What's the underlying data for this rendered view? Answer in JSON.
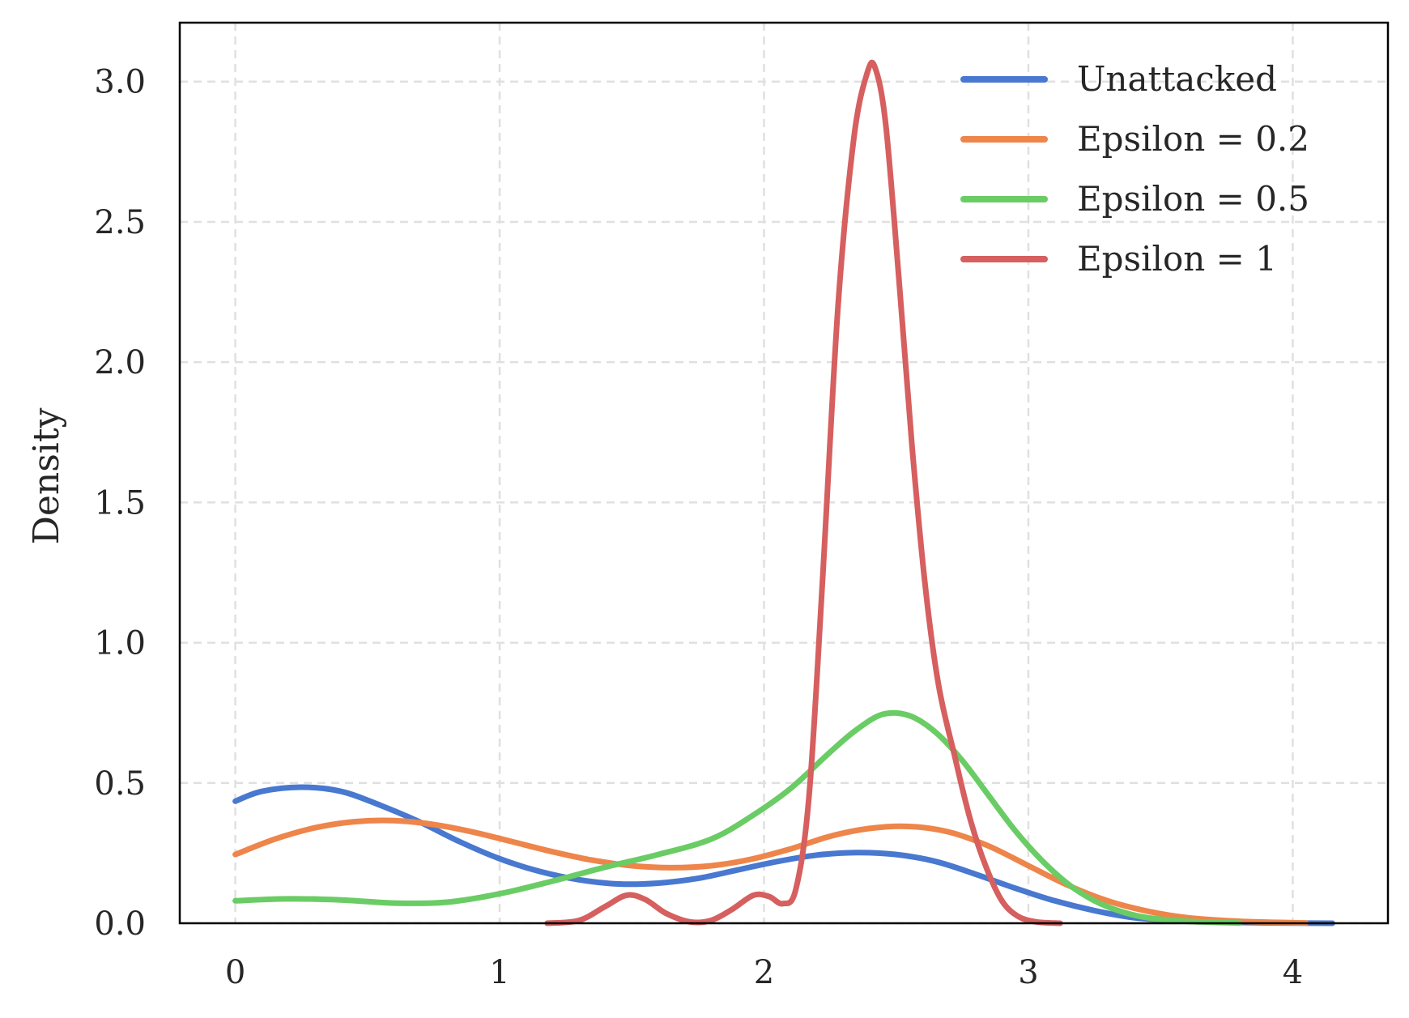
{
  "chart_data": {
    "type": "line",
    "title": "",
    "xlabel": "",
    "ylabel": "Density",
    "xlim": [
      -0.21,
      4.36
    ],
    "ylim": [
      0,
      3.21
    ],
    "x_ticks": [
      0,
      1,
      2,
      3,
      4
    ],
    "x_tick_labels": [
      "0",
      "1",
      "2",
      "3",
      "4"
    ],
    "y_ticks": [
      0,
      0.5,
      1.0,
      1.5,
      2.0,
      2.5,
      3.0
    ],
    "y_tick_labels": [
      "0.0",
      "0.5",
      "1.0",
      "1.5",
      "2.0",
      "2.5",
      "3.0"
    ],
    "grid": true,
    "legend_position": "top-right",
    "series": [
      {
        "name": "Unattacked",
        "color": "#4878d0",
        "points": [
          [
            0,
            0.435
          ],
          [
            0.1,
            0.47
          ],
          [
            0.25,
            0.485
          ],
          [
            0.4,
            0.47
          ],
          [
            0.55,
            0.42
          ],
          [
            0.7,
            0.36
          ],
          [
            0.85,
            0.29
          ],
          [
            1.0,
            0.23
          ],
          [
            1.15,
            0.185
          ],
          [
            1.3,
            0.155
          ],
          [
            1.45,
            0.14
          ],
          [
            1.6,
            0.143
          ],
          [
            1.75,
            0.16
          ],
          [
            1.9,
            0.19
          ],
          [
            2.05,
            0.22
          ],
          [
            2.2,
            0.243
          ],
          [
            2.35,
            0.252
          ],
          [
            2.5,
            0.245
          ],
          [
            2.65,
            0.22
          ],
          [
            2.8,
            0.175
          ],
          [
            2.95,
            0.125
          ],
          [
            3.1,
            0.08
          ],
          [
            3.25,
            0.045
          ],
          [
            3.4,
            0.02
          ],
          [
            3.6,
            0.008
          ],
          [
            3.85,
            0.002
          ],
          [
            4.15,
            0
          ]
        ]
      },
      {
        "name": "Epsilon = 0.2",
        "color": "#ee854a",
        "points": [
          [
            0,
            0.245
          ],
          [
            0.15,
            0.3
          ],
          [
            0.3,
            0.34
          ],
          [
            0.45,
            0.362
          ],
          [
            0.6,
            0.366
          ],
          [
            0.75,
            0.352
          ],
          [
            0.9,
            0.325
          ],
          [
            1.05,
            0.29
          ],
          [
            1.2,
            0.255
          ],
          [
            1.35,
            0.225
          ],
          [
            1.5,
            0.205
          ],
          [
            1.65,
            0.198
          ],
          [
            1.8,
            0.205
          ],
          [
            1.95,
            0.228
          ],
          [
            2.1,
            0.265
          ],
          [
            2.25,
            0.31
          ],
          [
            2.4,
            0.338
          ],
          [
            2.55,
            0.345
          ],
          [
            2.7,
            0.325
          ],
          [
            2.85,
            0.275
          ],
          [
            3.0,
            0.205
          ],
          [
            3.15,
            0.135
          ],
          [
            3.3,
            0.08
          ],
          [
            3.45,
            0.043
          ],
          [
            3.6,
            0.02
          ],
          [
            3.8,
            0.007
          ],
          [
            4.05,
            0.001
          ]
        ]
      },
      {
        "name": "Epsilon = 0.5",
        "color": "#6acc64",
        "points": [
          [
            0,
            0.08
          ],
          [
            0.2,
            0.087
          ],
          [
            0.4,
            0.083
          ],
          [
            0.6,
            0.072
          ],
          [
            0.8,
            0.075
          ],
          [
            1.0,
            0.105
          ],
          [
            1.2,
            0.15
          ],
          [
            1.4,
            0.2
          ],
          [
            1.6,
            0.245
          ],
          [
            1.8,
            0.3
          ],
          [
            1.95,
            0.38
          ],
          [
            2.1,
            0.48
          ],
          [
            2.25,
            0.61
          ],
          [
            2.35,
            0.69
          ],
          [
            2.45,
            0.745
          ],
          [
            2.55,
            0.74
          ],
          [
            2.65,
            0.68
          ],
          [
            2.75,
            0.58
          ],
          [
            2.85,
            0.455
          ],
          [
            2.95,
            0.33
          ],
          [
            3.05,
            0.225
          ],
          [
            3.15,
            0.14
          ],
          [
            3.25,
            0.08
          ],
          [
            3.35,
            0.042
          ],
          [
            3.45,
            0.02
          ],
          [
            3.6,
            0.007
          ],
          [
            3.8,
            0.001
          ]
        ]
      },
      {
        "name": "Epsilon = 1",
        "color": "#d65f5f",
        "points": [
          [
            1.18,
            0
          ],
          [
            1.3,
            0.01
          ],
          [
            1.4,
            0.06
          ],
          [
            1.48,
            0.1
          ],
          [
            1.55,
            0.085
          ],
          [
            1.63,
            0.035
          ],
          [
            1.72,
            0.005
          ],
          [
            1.8,
            0.01
          ],
          [
            1.88,
            0.05
          ],
          [
            1.96,
            0.1
          ],
          [
            2.02,
            0.095
          ],
          [
            2.07,
            0.07
          ],
          [
            2.12,
            0.12
          ],
          [
            2.17,
            0.45
          ],
          [
            2.22,
            1.2
          ],
          [
            2.28,
            2.2
          ],
          [
            2.34,
            2.8
          ],
          [
            2.39,
            3.03
          ],
          [
            2.42,
            3.05
          ],
          [
            2.46,
            2.85
          ],
          [
            2.51,
            2.3
          ],
          [
            2.56,
            1.7
          ],
          [
            2.61,
            1.2
          ],
          [
            2.66,
            0.85
          ],
          [
            2.72,
            0.6
          ],
          [
            2.78,
            0.37
          ],
          [
            2.84,
            0.2
          ],
          [
            2.9,
            0.08
          ],
          [
            2.96,
            0.025
          ],
          [
            3.03,
            0.005
          ],
          [
            3.12,
            0
          ]
        ]
      }
    ]
  }
}
